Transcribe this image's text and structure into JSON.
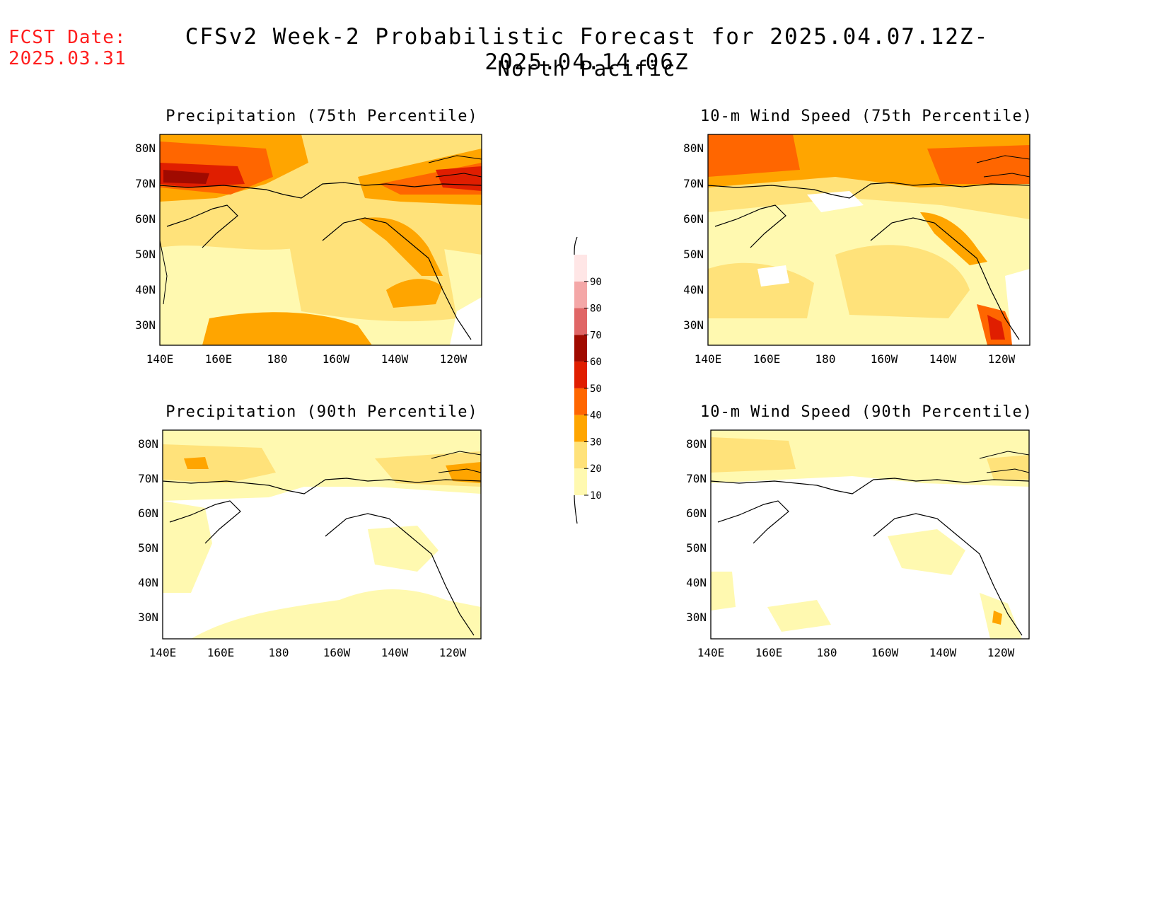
{
  "header": {
    "fcst_label": "FCST Date:",
    "fcst_date": "2025.03.31",
    "title": "CFSv2 Week-2 Probabilistic Forecast for 2025.04.07.12Z-2025.04.14.06Z",
    "region": "North Pacific"
  },
  "axes": {
    "lat_labels": [
      "80N",
      "70N",
      "60N",
      "50N",
      "40N",
      "30N"
    ],
    "lon_labels": [
      "140E",
      "160E",
      "180",
      "160W",
      "140W",
      "120W"
    ]
  },
  "panels": [
    {
      "id": "precip-75",
      "title": "Precipitation (75th Percentile)"
    },
    {
      "id": "wind-75",
      "title": "10-m Wind Speed (75th Percentile)"
    },
    {
      "id": "precip-90",
      "title": "Precipitation (90th Percentile)"
    },
    {
      "id": "wind-90",
      "title": "10-m Wind Speed (90th Percentile)"
    }
  ],
  "colorbar": {
    "levels": [
      "10",
      "20",
      "30",
      "40",
      "50",
      "60",
      "70",
      "80",
      "90"
    ],
    "colors": [
      "#fff9b0",
      "#ffe27a",
      "#ffa500",
      "#ff6600",
      "#e01e00",
      "#a00a00",
      "#e06666",
      "#f4a7a7",
      "#ffe6e6"
    ]
  },
  "colors": {
    "c10": "#fff9b0",
    "c20": "#ffe27a",
    "c30": "#ffa500",
    "c40": "#ff6600",
    "c50": "#e01e00",
    "c60": "#a00a00"
  }
}
